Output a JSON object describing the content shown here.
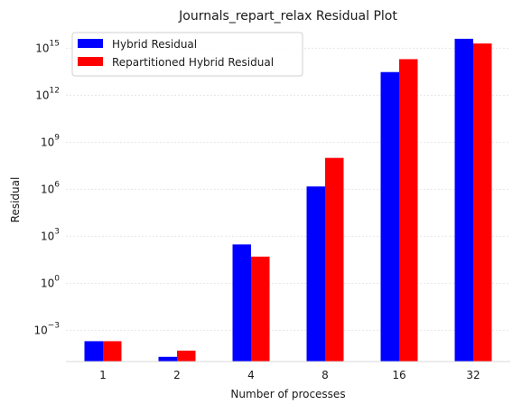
{
  "chart_data": {
    "type": "bar",
    "title": "Journals_repart_relax Residual Plot",
    "xlabel": "Number of processes",
    "ylabel": "Residual",
    "yscale": "log",
    "ylim": [
      1e-05,
      1e+16
    ],
    "grid": "y-major, dotted, light",
    "legend_position": "top-left",
    "categories": [
      "1",
      "2",
      "4",
      "8",
      "16",
      "32"
    ],
    "y_ticks": [
      {
        "value": 0.001,
        "mantissa": "10",
        "exp": "−3"
      },
      {
        "value": 1,
        "mantissa": "10",
        "exp": "0"
      },
      {
        "value": 1000,
        "mantissa": "10",
        "exp": "3"
      },
      {
        "value": 1000000,
        "mantissa": "10",
        "exp": "6"
      },
      {
        "value": 1000000000,
        "mantissa": "10",
        "exp": "9"
      },
      {
        "value": 1000000000000,
        "mantissa": "10",
        "exp": "12"
      },
      {
        "value": 1000000000000000,
        "mantissa": "10",
        "exp": "15"
      }
    ],
    "series": [
      {
        "name": "Hybrid Residual",
        "color": "#0000ff",
        "values": [
          0.0002,
          2e-05,
          300,
          1500000,
          30000000000000,
          4000000000000000
        ]
      },
      {
        "name": "Repartitioned Hybrid Residual",
        "color": "#ff0000",
        "values": [
          0.0002,
          5e-05,
          50,
          100000000,
          200000000000000,
          2000000000000000
        ]
      }
    ]
  }
}
